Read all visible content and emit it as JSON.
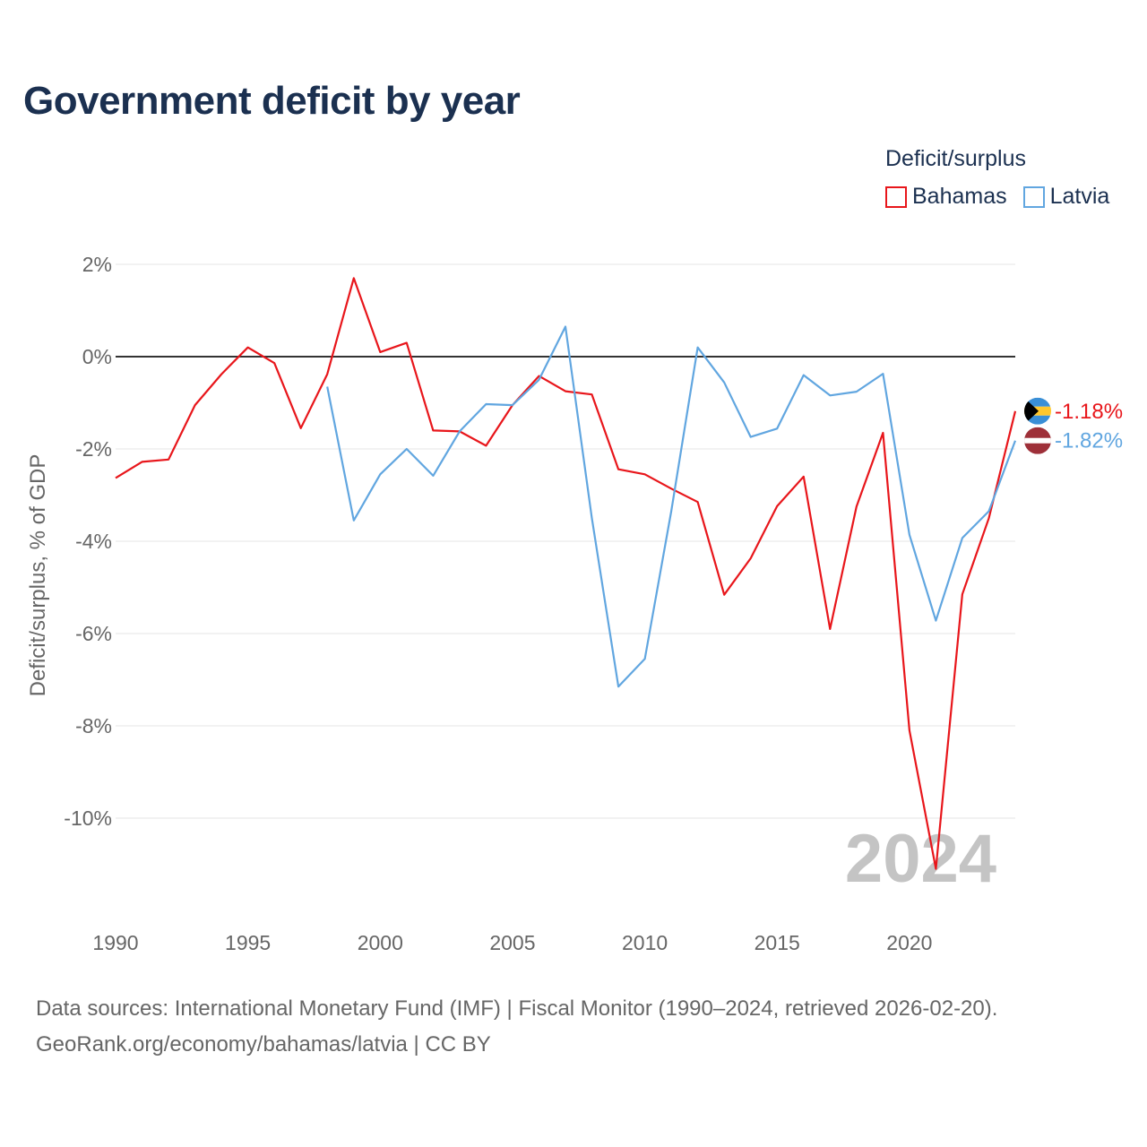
{
  "title": "Government deficit by year",
  "legend": {
    "title": "Deficit/surplus",
    "items": [
      {
        "name": "Bahamas",
        "color": "#e8161b"
      },
      {
        "name": "Latvia",
        "color": "#61a6e0"
      }
    ]
  },
  "chart_data": {
    "type": "line",
    "ylabel": "Deficit/surplus, % of GDP",
    "xlabel": "",
    "xlim": [
      1990,
      2024
    ],
    "ylim": [
      -12,
      2
    ],
    "y_ticks": [
      2,
      0,
      -2,
      -4,
      -6,
      -8,
      -10
    ],
    "y_tick_labels": [
      "2%",
      "0%",
      "-2%",
      "-4%",
      "-6%",
      "-8%",
      "-10%"
    ],
    "x_ticks": [
      1990,
      1995,
      2000,
      2005,
      2010,
      2015,
      2020
    ],
    "x_tick_labels": [
      "1990",
      "1995",
      "2000",
      "2005",
      "2010",
      "2015",
      "2020"
    ],
    "year_watermark": "2024",
    "series": [
      {
        "name": "Bahamas",
        "color": "#e8161b",
        "end_label": "-1.18%",
        "x": [
          1990,
          1991,
          1992,
          1993,
          1994,
          1995,
          1996,
          1997,
          1998,
          1999,
          2000,
          2001,
          2002,
          2003,
          2004,
          2005,
          2006,
          2007,
          2008,
          2009,
          2010,
          2011,
          2012,
          2013,
          2014,
          2015,
          2016,
          2017,
          2018,
          2019,
          2020,
          2021,
          2022,
          2023,
          2024
        ],
        "y": [
          -2.63,
          -2.28,
          -2.23,
          -1.05,
          -0.38,
          0.2,
          -0.14,
          -1.55,
          -0.38,
          1.7,
          0.1,
          0.3,
          -1.6,
          -1.62,
          -1.93,
          -1.05,
          -0.42,
          -0.75,
          -0.82,
          -2.44,
          -2.55,
          -2.86,
          -3.15,
          -5.16,
          -4.37,
          -3.24,
          -2.6,
          -5.9,
          -3.25,
          -1.65,
          -8.1,
          -11.1,
          -5.15,
          -3.5,
          -1.18
        ]
      },
      {
        "name": "Latvia",
        "color": "#61a6e0",
        "end_label": "-1.82%",
        "x": [
          1998,
          1999,
          2000,
          2001,
          2002,
          2003,
          2004,
          2005,
          2006,
          2007,
          2008,
          2009,
          2010,
          2011,
          2012,
          2013,
          2014,
          2015,
          2016,
          2017,
          2018,
          2019,
          2020,
          2021,
          2022,
          2023,
          2024
        ],
        "y": [
          -0.65,
          -3.55,
          -2.55,
          -2.0,
          -2.58,
          -1.62,
          -1.03,
          -1.05,
          -0.5,
          0.65,
          -3.5,
          -7.15,
          -6.55,
          -3.35,
          0.2,
          -0.56,
          -1.74,
          -1.56,
          -0.4,
          -0.84,
          -0.76,
          -0.37,
          -3.86,
          -5.72,
          -3.93,
          -3.35,
          -1.82
        ]
      }
    ]
  },
  "source": {
    "line1": "Data sources: International Monetary Fund (IMF) | Fiscal Monitor (1990–2024, retrieved 2026-02-20).",
    "line2": "GeoRank.org/economy/bahamas/latvia | CC BY"
  }
}
